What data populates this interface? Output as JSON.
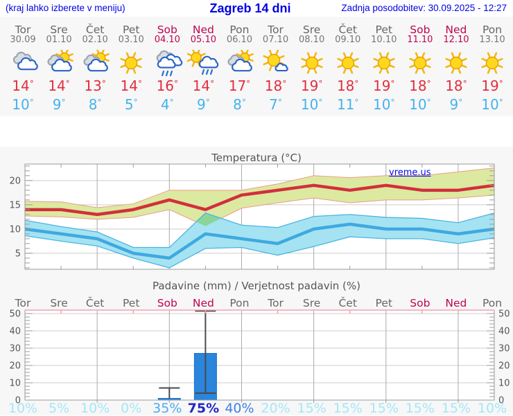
{
  "header": {
    "menu_hint": "(kraj lahko izberete v meniju)",
    "title": "Zagreb 14 dni",
    "last_update": "Zadnja posodobitev: 30.09.2025 - 12:27"
  },
  "watermark": "vreme.us",
  "units": {
    "degree": "°",
    "percent": "%"
  },
  "days": [
    {
      "dow": "Tor",
      "date": "30.09",
      "weekend": false,
      "icon": "cloudy"
    },
    {
      "dow": "Sre",
      "date": "01.10",
      "weekend": false,
      "icon": "sun-cloud"
    },
    {
      "dow": "Čet",
      "date": "02.10",
      "weekend": false,
      "icon": "sun-cloud"
    },
    {
      "dow": "Pet",
      "date": "03.10",
      "weekend": false,
      "icon": "sunny"
    },
    {
      "dow": "Sob",
      "date": "04.10",
      "weekend": true,
      "icon": "rain"
    },
    {
      "dow": "Ned",
      "date": "05.10",
      "weekend": true,
      "icon": "sun-rain"
    },
    {
      "dow": "Pon",
      "date": "06.10",
      "weekend": false,
      "icon": "sun-cloud"
    },
    {
      "dow": "Tor",
      "date": "07.10",
      "weekend": false,
      "icon": "sun-small-cloud"
    },
    {
      "dow": "Sre",
      "date": "08.10",
      "weekend": false,
      "icon": "sunny"
    },
    {
      "dow": "Čet",
      "date": "09.10",
      "weekend": false,
      "icon": "sunny"
    },
    {
      "dow": "Pet",
      "date": "10.10",
      "weekend": false,
      "icon": "sunny"
    },
    {
      "dow": "Sob",
      "date": "11.10",
      "weekend": true,
      "icon": "sunny"
    },
    {
      "dow": "Ned",
      "date": "12.10",
      "weekend": true,
      "icon": "sunny"
    },
    {
      "dow": "Pon",
      "date": "13.10",
      "weekend": false,
      "icon": "sunny"
    }
  ],
  "chart_data": [
    {
      "type": "line",
      "title": "Temperatura (°C)",
      "x_labels": [
        "Tor",
        "Sre",
        "Čet",
        "Pet",
        "Sob",
        "Ned",
        "Pon",
        "Tor",
        "Sre",
        "Čet",
        "Pet",
        "Sob",
        "Ned",
        "Pon"
      ],
      "ylim": [
        1.7,
        23.4
      ],
      "yticks": [
        5,
        10,
        15,
        20
      ],
      "grid": true,
      "series": [
        {
          "name": "tmax",
          "values": [
            14,
            14,
            13,
            14,
            16,
            14,
            17,
            18,
            19,
            18,
            19,
            18,
            18,
            19
          ],
          "hi": [
            15.7,
            15.6,
            14.4,
            15.2,
            18,
            18,
            18,
            19.3,
            21,
            20.6,
            21,
            21,
            21.8,
            22.6
          ],
          "lo": [
            12.7,
            12.5,
            12,
            12.4,
            14,
            10.6,
            14.3,
            15.4,
            16.4,
            15.4,
            16,
            16,
            16.4,
            17
          ]
        },
        {
          "name": "tmin",
          "values": [
            10,
            9,
            8,
            5,
            4,
            9,
            8,
            7,
            10,
            11,
            10,
            10,
            9,
            10
          ],
          "hi": [
            11.8,
            10.5,
            9.4,
            6.2,
            6.2,
            13.3,
            10.8,
            10.3,
            12.6,
            13,
            12.4,
            12.2,
            11.3,
            13.3
          ],
          "lo": [
            8.6,
            7.5,
            6.5,
            4,
            2,
            6,
            6.2,
            4.6,
            6.4,
            8.4,
            8,
            8,
            7,
            8.2
          ]
        }
      ]
    },
    {
      "type": "bar",
      "title": "Padavine (mm) / Verjetnost padavin (%)",
      "x_labels": [
        "Tor",
        "Sre",
        "Čet",
        "Pet",
        "Sob",
        "Ned",
        "Pon",
        "Tor",
        "Sre",
        "Čet",
        "Pet",
        "Sob",
        "Ned",
        "Pon"
      ],
      "ylim": [
        0,
        52
      ],
      "yticks": [
        0,
        10,
        20,
        30,
        40,
        50
      ],
      "grid": true,
      "values": [
        0,
        0,
        0,
        0,
        1,
        27,
        0,
        0,
        0,
        0,
        0,
        0,
        0,
        0
      ],
      "whisker_lo": [
        null,
        null,
        null,
        null,
        null,
        4,
        null,
        null,
        null,
        null,
        null,
        null,
        null,
        null
      ],
      "whisker_hi": [
        null,
        null,
        null,
        null,
        7,
        51.5,
        null,
        null,
        null,
        null,
        null,
        null,
        null,
        null
      ],
      "probability_percent": [
        10,
        5,
        10,
        0,
        35,
        75,
        40,
        20,
        15,
        15,
        15,
        15,
        15,
        10
      ]
    }
  ],
  "colors": {
    "link_blue": "#0000e6",
    "weekday_gray": "#666666",
    "weekend_red": "#bf0450",
    "tmax_red": "#e12e3e",
    "tmin_blue": "#45b2ec",
    "temp_max_line": "#d22f3c",
    "temp_max_band": "#dce9a0",
    "temp_max_band_edge": "#ef9a88",
    "temp_min_line": "#3fa9e0",
    "temp_min_band": "#a5e3f2",
    "temp_min_band_edge": "#49b4e4",
    "band_overlap": "#8bd49a",
    "bar_blue": "#2a85dc",
    "whisker": "#4a4a4a",
    "pink_axis": "#f5a0b0",
    "grid": "#cccccc",
    "vgrid": "#aaaaaa",
    "axis": "#999999",
    "tick_label": "#555555",
    "prob_low": "#a4e7f7",
    "prob_mid": "#4aacf2",
    "prob_high": "#3e7fe8",
    "prob_very_high": "#2127c8"
  }
}
